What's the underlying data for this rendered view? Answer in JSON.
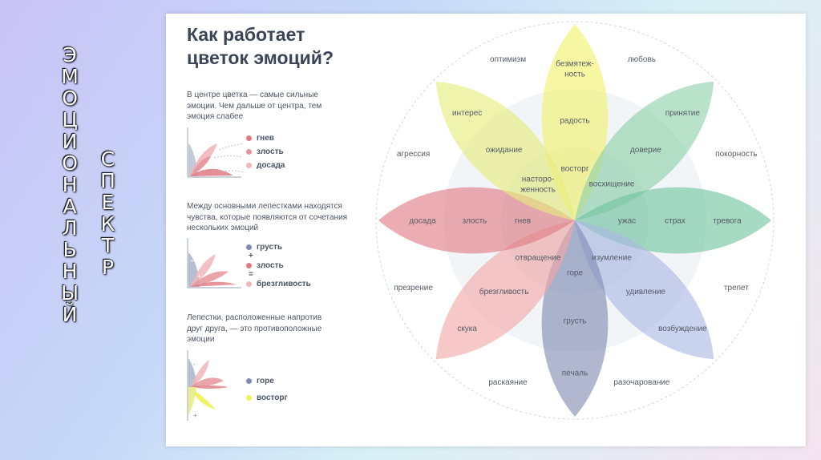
{
  "vertical_title_1": [
    "Э",
    "М",
    "О",
    "Ц",
    "И",
    "О",
    "Н",
    "А",
    "Л",
    "Ь",
    "Н",
    "Ы",
    "Й"
  ],
  "vertical_title_2": [
    "С",
    "П",
    "Е",
    "К",
    "Т",
    "Р"
  ],
  "card": {
    "title_line1": "Как работает",
    "title_line2": "цветок эмоций?",
    "desc1": "В центре цветка — самые сильные эмоции. Чем дальше от центра, тем эмоция слабее",
    "desc2": "Между основными лепестками находятся чувства, которые появляются от сочетания нескольких эмоций",
    "desc3": "Лепестки, расположенные напротив друг друга, — это противоположные эмоции",
    "legend1": [
      {
        "label": "гнев",
        "color": "#e07a82"
      },
      {
        "label": "злость",
        "color": "#e8959b"
      },
      {
        "label": "досада",
        "color": "#f1b5b9"
      }
    ],
    "legend2": {
      "items": [
        {
          "label": "грусть",
          "color": "#7f8bb2"
        },
        {
          "label": "злость",
          "color": "#e07a82"
        },
        {
          "label": "брезгливость",
          "color": "#f1b5b9"
        }
      ],
      "ops": [
        "+",
        "="
      ]
    },
    "legend3": [
      {
        "label": "горе",
        "color": "#7f8bb2"
      },
      {
        "label": "восторг",
        "color": "#eef25a"
      }
    ],
    "mini_signs": [
      "+",
      "+",
      "-",
      "+"
    ]
  },
  "flower": {
    "colors": {
      "yellow": "#f2f26a",
      "lime": "#e5ee7a",
      "green": "#8cd0a8",
      "teal": "#6fc49e",
      "blue": "#a9b8e4",
      "navy": "#7f8bb2",
      "pink": "#f2a7a7",
      "red": "#e07a82"
    },
    "petals": [
      {
        "outer": "безмятеж-\nность",
        "middle": "радость",
        "inner": "восторг"
      },
      {
        "outer": "принятие",
        "middle": "доверие",
        "inner": "восхищение"
      },
      {
        "outer": "тревога",
        "middle": "страх",
        "inner": "ужас"
      },
      {
        "outer": "возбуждение",
        "middle": "удивление",
        "inner": "изумление"
      },
      {
        "outer": "печаль",
        "middle": "грусть",
        "inner": "горе"
      },
      {
        "outer": "скука",
        "middle": "брезгливость",
        "inner": "отвращение"
      },
      {
        "outer": "досада",
        "middle": "злость",
        "inner": "гнев"
      },
      {
        "outer": "интерес",
        "middle": "ожидание",
        "inner": "насторо-\nженность"
      }
    ],
    "between": [
      "любовь",
      "покорность",
      "трепет",
      "разочарование",
      "раскаяние",
      "презрение",
      "агрессия",
      "оптимизм"
    ]
  }
}
